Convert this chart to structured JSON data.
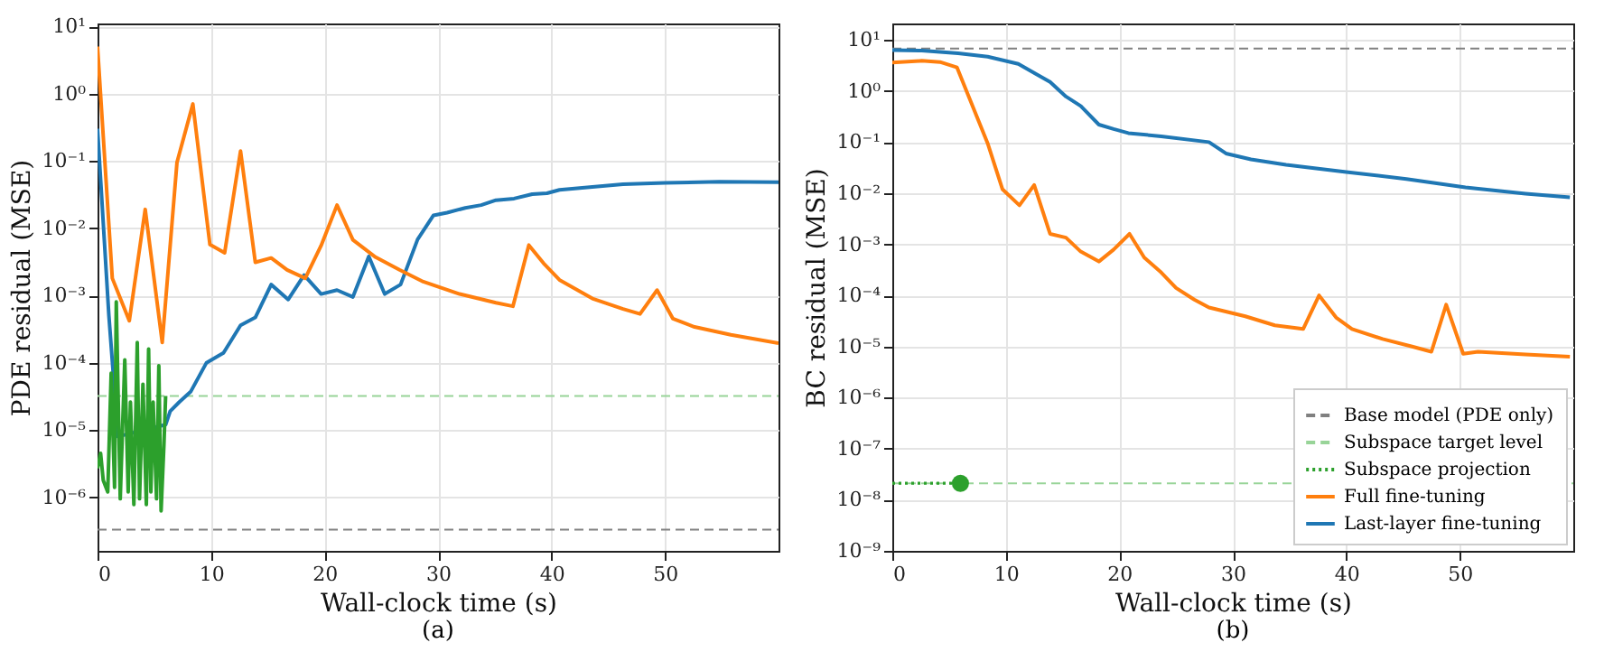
{
  "chart_data": [
    {
      "type": "line",
      "title": "(a)",
      "xlabel": "Wall-clock time (s)",
      "ylabel": "PDE residual (MSE)",
      "log": "y",
      "grid": true,
      "legend": false,
      "xlim": [
        0,
        60
      ],
      "xticks": [
        0,
        10,
        20,
        30,
        40,
        50
      ],
      "ylim": [
        1.6e-07,
        11
      ],
      "yticks": [
        {
          "value": 1e-06,
          "label": "10⁻⁶"
        },
        {
          "value": 1e-05,
          "label": "10⁻⁵"
        },
        {
          "value": 0.0001,
          "label": "10⁻⁴"
        },
        {
          "value": 0.001,
          "label": "10⁻³"
        },
        {
          "value": 0.01,
          "label": "10⁻²"
        },
        {
          "value": 0.1,
          "label": "10⁻¹"
        },
        {
          "value": 1,
          "label": "10⁰"
        },
        {
          "value": 10,
          "label": "10¹"
        }
      ],
      "ref_lines": [
        {
          "axis": "y",
          "value": 3.3e-07,
          "color": "#808080",
          "line_style": "dashed"
        },
        {
          "axis": "y",
          "value": 3.2e-05,
          "color": "#98d498",
          "line_style": "dashed"
        }
      ],
      "series": [
        {
          "type": "line",
          "color": "#1f77b4",
          "line_style": "solid",
          "x": [
            0,
            1.0,
            1.8,
            6.0,
            6.4,
            7.2,
            8.2,
            9.6,
            11.1,
            12.6,
            13.9,
            15.3,
            16.8,
            18.2,
            19.7,
            21.1,
            22.5,
            23.9,
            25.3,
            26.7,
            28.2,
            29.6,
            30.8,
            32.4,
            33.8,
            35.1,
            36.7,
            38.3,
            39.6,
            40.7,
            43.6,
            46.3,
            50,
            54.8,
            60
          ],
          "values": [
            0.3,
            0.0005,
            8e-06,
            1.2e-05,
            1.9e-05,
            2.6e-05,
            3.7e-05,
            0.0001,
            0.00014,
            0.00036,
            0.00047,
            0.00145,
            0.00087,
            0.002,
            0.00105,
            0.0012,
            0.00095,
            0.0038,
            0.00105,
            0.00145,
            0.0068,
            0.0155,
            0.017,
            0.02,
            0.022,
            0.026,
            0.0275,
            0.032,
            0.033,
            0.037,
            0.041,
            0.045,
            0.047,
            0.049,
            0.048
          ]
        },
        {
          "type": "line",
          "color": "#ff7f0e",
          "line_style": "solid",
          "x": [
            0,
            1.3,
            2.8,
            4.2,
            5.7,
            7.0,
            8.4,
            9.9,
            11.2,
            12.6,
            13.9,
            15.3,
            16.7,
            18.3,
            19.7,
            21.1,
            22.5,
            24.5,
            26.6,
            28.7,
            31.9,
            35.1,
            36.6,
            38.0,
            39.3,
            40.7,
            43.6,
            46.3,
            47.8,
            49.3,
            50.7,
            52.6,
            55.8,
            60
          ],
          "values": [
            5,
            0.0018,
            0.00042,
            0.019,
            0.0002,
            0.095,
            0.7,
            0.0057,
            0.0043,
            0.14,
            0.0031,
            0.0036,
            0.0024,
            0.0018,
            0.0055,
            0.022,
            0.0067,
            0.0037,
            0.0024,
            0.0016,
            0.00105,
            0.00078,
            0.00069,
            0.0056,
            0.003,
            0.0017,
            0.0009,
            0.00063,
            0.00053,
            0.0012,
            0.00045,
            0.00034,
            0.00026,
            0.000195
          ]
        },
        {
          "type": "line",
          "color": "#2ca02c",
          "line_style": "solid",
          "x": [
            0,
            0.27,
            0.5,
            0.9,
            1.2,
            1.5,
            1.65,
            2.0,
            2.4,
            2.7,
            2.9,
            3.2,
            3.5,
            3.7,
            4.0,
            4.3,
            4.5,
            4.7,
            4.9,
            5.2,
            5.4,
            5.6,
            5.85,
            6.0
          ],
          "values": [
            2.7e-06,
            4.5e-06,
            1.8e-06,
            1.2e-06,
            7e-05,
            1.4e-06,
            0.0008,
            9.5e-07,
            0.00011,
            1.2e-06,
            2.6e-05,
            7.8e-07,
            0.0002,
            9.5e-07,
            4.8e-05,
            7.8e-07,
            0.00016,
            1.2e-06,
            2.6e-05,
            9.5e-07,
            9e-05,
            6.3e-07,
            6e-06,
            3.2e-05
          ]
        }
      ]
    },
    {
      "type": "line",
      "title": "(b)",
      "xlabel": "Wall-clock time (s)",
      "ylabel": "BC residual (MSE)",
      "log": "y",
      "grid": true,
      "legend": "bottom right",
      "xlim": [
        0,
        60
      ],
      "xticks": [
        0,
        10,
        20,
        30,
        40,
        50
      ],
      "ylim": [
        1e-09,
        21
      ],
      "yticks": [
        {
          "value": 1e-09,
          "label": "10⁻⁹"
        },
        {
          "value": 1e-08,
          "label": "10⁻⁸"
        },
        {
          "value": 1e-07,
          "label": "10⁻⁷"
        },
        {
          "value": 1e-06,
          "label": "10⁻⁶"
        },
        {
          "value": 1e-05,
          "label": "10⁻⁵"
        },
        {
          "value": 0.0001,
          "label": "10⁻⁴"
        },
        {
          "value": 0.001,
          "label": "10⁻³"
        },
        {
          "value": 0.01,
          "label": "10⁻²"
        },
        {
          "value": 0.1,
          "label": "10⁻¹"
        },
        {
          "value": 1,
          "label": "10⁰"
        },
        {
          "value": 10,
          "label": "10¹"
        }
      ],
      "ref_lines": [
        {
          "axis": "y",
          "value": 6.8,
          "label": "Base model (PDE only)",
          "color": "#808080",
          "line_style": "dashed"
        },
        {
          "axis": "y",
          "value": 2.1e-08,
          "label": "Subspace target level",
          "color": "#98d498",
          "line_style": "dashed"
        }
      ],
      "series": [
        {
          "type": "line",
          "name": "Subspace projection",
          "color": "#2ca02c",
          "line_style": "dotted",
          "x": [
            0,
            6
          ],
          "values": [
            2.1e-08,
            2.1e-08
          ]
        },
        {
          "type": "scatter",
          "color": "#2ca02c",
          "marker": "circle",
          "x": [
            6
          ],
          "values": [
            2.1e-08
          ]
        },
        {
          "type": "line",
          "name": "Full fine-tuning",
          "color": "#ff7f0e",
          "line_style": "solid",
          "x": [
            0,
            2.6,
            4.2,
            5.7,
            6.8,
            8.4,
            9.7,
            11.2,
            12.5,
            13.9,
            15.3,
            16.6,
            18.2,
            19.5,
            20.9,
            22.2,
            23.7,
            25,
            26.6,
            27.9,
            31.1,
            33.7,
            36.2,
            37.6,
            39.1,
            40.5,
            43.2,
            45.8,
            47.5,
            48.8,
            50.3,
            51.6,
            55.8,
            59.7
          ],
          "values": [
            3.6,
            3.9,
            3.7,
            2.9,
            0.72,
            0.095,
            0.012,
            0.0058,
            0.0145,
            0.0016,
            0.00135,
            0.00072,
            0.00046,
            0.00079,
            0.0016,
            0.00055,
            0.00028,
            0.00014,
            8.3e-05,
            5.8e-05,
            3.9e-05,
            2.6e-05,
            2.2e-05,
            0.0001,
            3.7e-05,
            2.2e-05,
            1.4e-05,
            1e-05,
            7.9e-06,
            6.6e-05,
            7.2e-06,
            7.9e-06,
            7e-06,
            6.3e-06
          ]
        },
        {
          "type": "line",
          "name": "Last-layer fine-tuning",
          "color": "#1f77b4",
          "line_style": "solid",
          "x": [
            0,
            2.6,
            5.8,
            8.4,
            11.1,
            12.6,
            13.9,
            15.3,
            16.6,
            18.2,
            19.5,
            20.8,
            23.7,
            27.9,
            29.4,
            31.6,
            34.7,
            40,
            45.3,
            50.5,
            55.8,
            59.7
          ],
          "values": [
            6.3,
            6.2,
            5.5,
            4.7,
            3.4,
            2.2,
            1.5,
            0.78,
            0.51,
            0.22,
            0.18,
            0.15,
            0.13,
            0.1,
            0.06,
            0.046,
            0.036,
            0.026,
            0.019,
            0.013,
            0.0098,
            0.0083
          ]
        }
      ]
    }
  ]
}
